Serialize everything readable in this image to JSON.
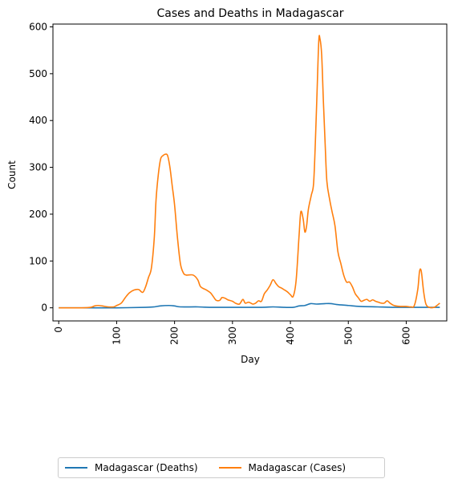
{
  "chart_data": {
    "type": "line",
    "title": "Cases and Deaths in Madagascar",
    "xlabel": "Day",
    "ylabel": "Count",
    "xlim": [
      -10,
      670
    ],
    "ylim": [
      -28,
      606
    ],
    "xticks": [
      0,
      100,
      200,
      300,
      400,
      500,
      600
    ],
    "yticks": [
      0,
      100,
      200,
      300,
      400,
      500,
      600
    ],
    "grid": false,
    "legend_position": "bottom, below plot",
    "series": [
      {
        "name": "Madagascar (Deaths)",
        "color": "#1f77b4",
        "points": [
          [
            0,
            0
          ],
          [
            50,
            0
          ],
          [
            100,
            0
          ],
          [
            150,
            1
          ],
          [
            165,
            2
          ],
          [
            175,
            4
          ],
          [
            190,
            5
          ],
          [
            200,
            4
          ],
          [
            210,
            2
          ],
          [
            240,
            2
          ],
          [
            260,
            1
          ],
          [
            300,
            1
          ],
          [
            350,
            1
          ],
          [
            370,
            2
          ],
          [
            390,
            1
          ],
          [
            405,
            1
          ],
          [
            415,
            4
          ],
          [
            425,
            5
          ],
          [
            435,
            9
          ],
          [
            445,
            8
          ],
          [
            460,
            9
          ],
          [
            470,
            9
          ],
          [
            480,
            7
          ],
          [
            500,
            5
          ],
          [
            520,
            3
          ],
          [
            550,
            2
          ],
          [
            580,
            1
          ],
          [
            620,
            1
          ],
          [
            658,
            1
          ]
        ]
      },
      {
        "name": "Madagascar (Cases)",
        "color": "#ff7f0e",
        "points": [
          [
            0,
            0
          ],
          [
            20,
            0
          ],
          [
            40,
            0
          ],
          [
            55,
            1
          ],
          [
            62,
            4
          ],
          [
            68,
            5
          ],
          [
            75,
            4
          ],
          [
            85,
            2
          ],
          [
            95,
            2
          ],
          [
            100,
            5
          ],
          [
            108,
            10
          ],
          [
            115,
            22
          ],
          [
            122,
            32
          ],
          [
            130,
            38
          ],
          [
            138,
            39
          ],
          [
            145,
            33
          ],
          [
            150,
            45
          ],
          [
            155,
            65
          ],
          [
            160,
            85
          ],
          [
            165,
            150
          ],
          [
            168,
            230
          ],
          [
            172,
            285
          ],
          [
            176,
            318
          ],
          [
            180,
            325
          ],
          [
            184,
            328
          ],
          [
            188,
            325
          ],
          [
            192,
            300
          ],
          [
            196,
            260
          ],
          [
            200,
            220
          ],
          [
            205,
            150
          ],
          [
            210,
            95
          ],
          [
            215,
            75
          ],
          [
            220,
            70
          ],
          [
            232,
            70
          ],
          [
            240,
            60
          ],
          [
            245,
            45
          ],
          [
            255,
            38
          ],
          [
            262,
            32
          ],
          [
            268,
            22
          ],
          [
            272,
            16
          ],
          [
            278,
            16
          ],
          [
            282,
            22
          ],
          [
            288,
            20
          ],
          [
            292,
            17
          ],
          [
            300,
            14
          ],
          [
            305,
            10
          ],
          [
            312,
            8
          ],
          [
            318,
            18
          ],
          [
            322,
            10
          ],
          [
            328,
            12
          ],
          [
            335,
            8
          ],
          [
            340,
            10
          ],
          [
            345,
            15
          ],
          [
            350,
            14
          ],
          [
            355,
            30
          ],
          [
            360,
            38
          ],
          [
            365,
            48
          ],
          [
            370,
            60
          ],
          [
            375,
            52
          ],
          [
            380,
            45
          ],
          [
            385,
            42
          ],
          [
            390,
            38
          ],
          [
            395,
            34
          ],
          [
            400,
            28
          ],
          [
            405,
            25
          ],
          [
            410,
            60
          ],
          [
            415,
            155
          ],
          [
            418,
            205
          ],
          [
            422,
            190
          ],
          [
            425,
            162
          ],
          [
            428,
            175
          ],
          [
            431,
            210
          ],
          [
            436,
            240
          ],
          [
            440,
            265
          ],
          [
            443,
            350
          ],
          [
            446,
            460
          ],
          [
            449,
            570
          ],
          [
            451,
            575
          ],
          [
            454,
            540
          ],
          [
            457,
            440
          ],
          [
            460,
            350
          ],
          [
            463,
            270
          ],
          [
            468,
            230
          ],
          [
            472,
            205
          ],
          [
            477,
            175
          ],
          [
            482,
            120
          ],
          [
            487,
            95
          ],
          [
            492,
            70
          ],
          [
            497,
            55
          ],
          [
            502,
            55
          ],
          [
            507,
            45
          ],
          [
            512,
            30
          ],
          [
            517,
            22
          ],
          [
            522,
            14
          ],
          [
            527,
            16
          ],
          [
            532,
            18
          ],
          [
            537,
            14
          ],
          [
            542,
            17
          ],
          [
            547,
            14
          ],
          [
            552,
            12
          ],
          [
            557,
            10
          ],
          [
            562,
            10
          ],
          [
            567,
            15
          ],
          [
            572,
            10
          ],
          [
            577,
            6
          ],
          [
            582,
            4
          ],
          [
            590,
            3
          ],
          [
            600,
            3
          ],
          [
            608,
            2
          ],
          [
            614,
            5
          ],
          [
            620,
            40
          ],
          [
            623,
            78
          ],
          [
            626,
            78
          ],
          [
            630,
            35
          ],
          [
            634,
            8
          ],
          [
            640,
            1
          ],
          [
            648,
            1
          ],
          [
            653,
            5
          ],
          [
            658,
            10
          ]
        ]
      }
    ]
  }
}
